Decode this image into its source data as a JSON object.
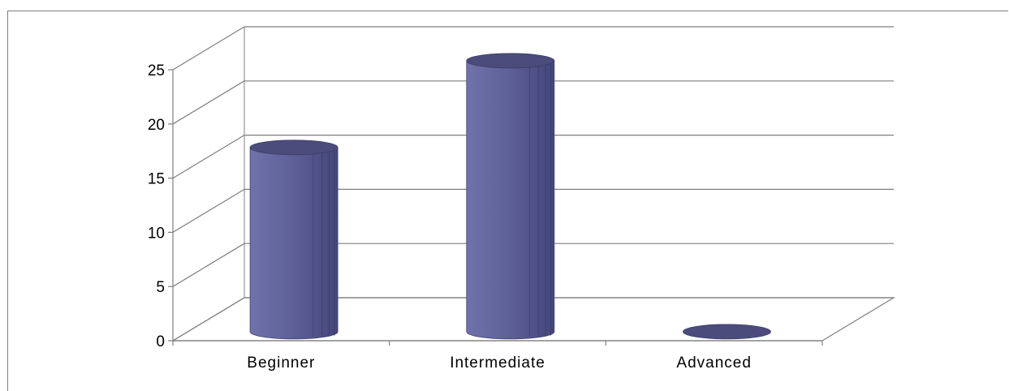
{
  "chart_data": {
    "type": "bar",
    "style": "3d-cylinder",
    "categories": [
      "Beginner",
      "Intermediate",
      "Advanced"
    ],
    "values": [
      17,
      25,
      0
    ],
    "ylim": [
      0,
      25
    ],
    "yticks": [
      0,
      5,
      10,
      15,
      20,
      25
    ],
    "grid": true,
    "legend": "none",
    "colors": {
      "bar": "#5d5f98",
      "bar_light": "#7a7cb4",
      "bar_dark": "#4a4b7e",
      "bar_top": "#4b4c7c",
      "gridline": "#7f7f7f"
    }
  }
}
